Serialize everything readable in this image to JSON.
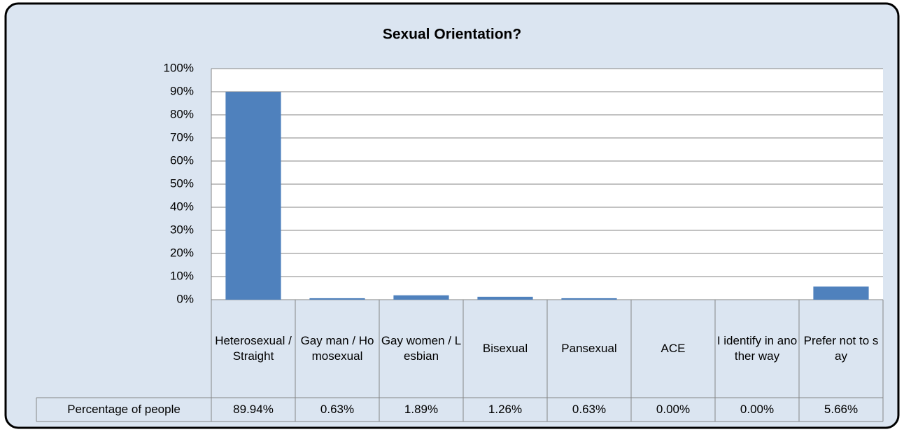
{
  "chart_data": {
    "type": "bar",
    "title": "Sexual Orientation?",
    "categories": [
      "Heterosexual / Straight",
      "Gay man / Homosexual",
      "Gay women / Lesbian",
      "Bisexual",
      "Pansexual",
      "ACE",
      "I identify in another way",
      "Prefer not to say"
    ],
    "series": [
      {
        "name": "Percentage of people",
        "color": "#4f81bd",
        "values": [
          89.94,
          0.63,
          1.89,
          1.26,
          0.63,
          0.0,
          0.0,
          5.66
        ],
        "value_labels": [
          "89.94%",
          "0.63%",
          "1.89%",
          "1.26%",
          "0.63%",
          "0.00%",
          "0.00%",
          "5.66%"
        ]
      }
    ],
    "ylim": [
      0,
      100
    ],
    "yticks": [
      {
        "value": 0,
        "label": "0%"
      },
      {
        "value": 10,
        "label": "10%"
      },
      {
        "value": 20,
        "label": "20%"
      },
      {
        "value": 30,
        "label": "30%"
      },
      {
        "value": 40,
        "label": "40%"
      },
      {
        "value": 50,
        "label": "50%"
      },
      {
        "value": 60,
        "label": "60%"
      },
      {
        "value": 70,
        "label": "70%"
      },
      {
        "value": 80,
        "label": "80%"
      },
      {
        "value": 90,
        "label": "90%"
      },
      {
        "value": 100,
        "label": "100%"
      }
    ],
    "grid": true
  }
}
